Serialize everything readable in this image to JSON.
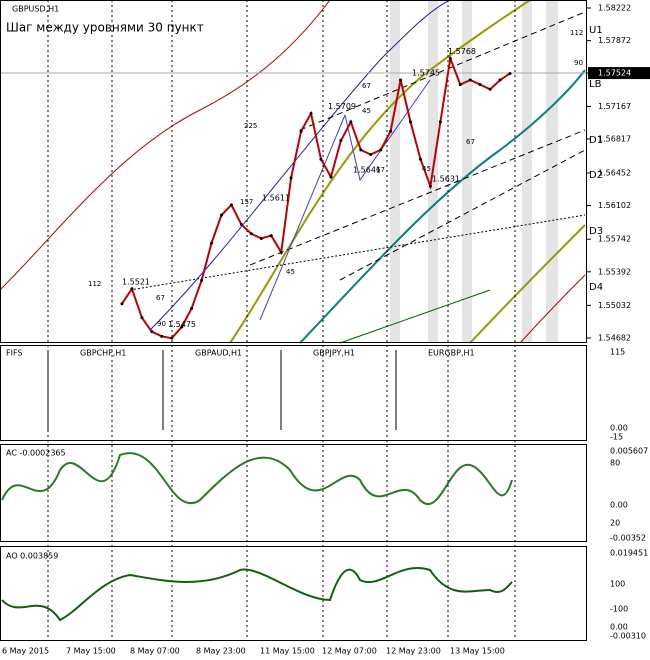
{
  "header": {
    "symbol": "GBPUSD,H1",
    "note": "Шаг между уровнями 30 пункт"
  },
  "price_axis": {
    "ticks": [
      1.58222,
      1.57872,
      1.57524,
      1.57167,
      1.56817,
      1.56452,
      1.56102,
      1.55742,
      1.55392,
      1.55032,
      1.54682
    ],
    "current": 1.57524
  },
  "levels": [
    "U1",
    "LB",
    "D1",
    "D2",
    "D3",
    "D4"
  ],
  "swing_labels": [
    1.5521,
    1.5475,
    1.5611,
    1.5709,
    1.5641,
    1.5745,
    1.5768,
    1.5631
  ],
  "step_labels": [
    "112",
    "90",
    "67",
    "225",
    "157",
    "45",
    "67",
    "45",
    "67",
    "45",
    "67",
    "112",
    "90"
  ],
  "price_line": [
    1.5505,
    1.5521,
    1.549,
    1.5475,
    1.547,
    1.5468,
    1.548,
    1.55,
    1.553,
    1.557,
    1.56,
    1.5611,
    1.559,
    1.558,
    1.5575,
    1.5578,
    1.556,
    1.564,
    1.569,
    1.5709,
    1.566,
    1.5641,
    1.568,
    1.57,
    1.567,
    1.5665,
    1.567,
    1.569,
    1.5745,
    1.57,
    1.566,
    1.5631,
    1.57,
    1.5768,
    1.574,
    1.5745,
    1.574,
    1.5735,
    1.5745,
    1.5752
  ],
  "pairs_panel": {
    "title": "FIFS",
    "symbols": [
      "GBPCHF,H1",
      "GBPAUD,H1",
      "GBPJPY,H1",
      "EURGBP,H1"
    ],
    "axis": [
      "115",
      "0.00",
      "-15"
    ]
  },
  "ac_panel": {
    "title": "AC -0.0002365",
    "axis": [
      "0.005607",
      "80",
      "0.00",
      "20",
      "-0.00352"
    ]
  },
  "ao_panel": {
    "title": "AO 0.003859",
    "axis": [
      "0.019451",
      "100",
      "-100",
      "0.00",
      "-0.00310"
    ]
  },
  "time_axis": [
    "6 May 2015",
    "7 May 15:00",
    "8 May 07:00",
    "8 May 23:00",
    "11 May 15:00",
    "12 May 07:00",
    "12 May 23:00",
    "13 May 15:00"
  ]
}
